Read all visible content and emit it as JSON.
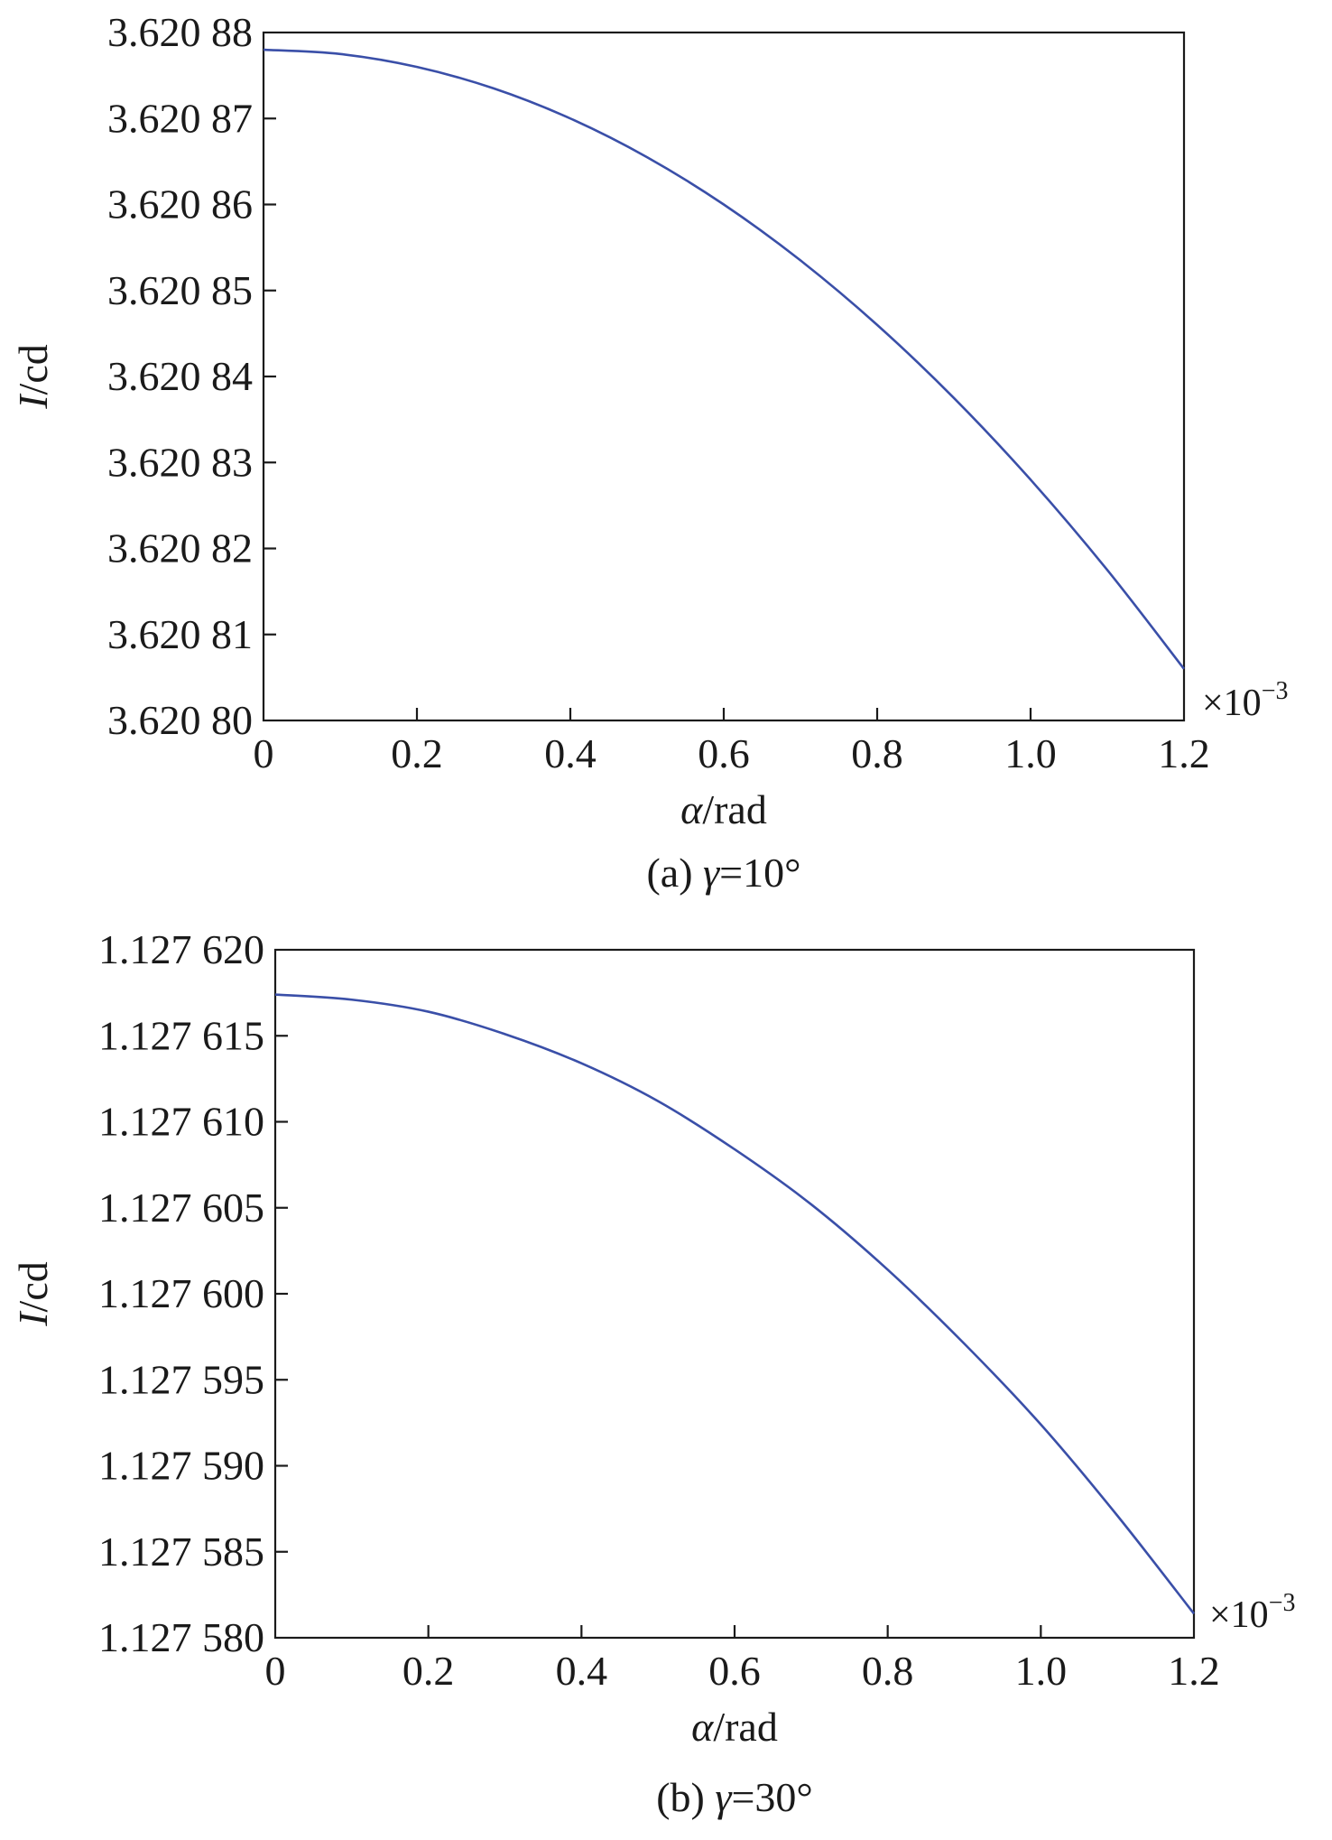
{
  "chart_data": [
    {
      "type": "line",
      "caption": "(a) γ=10°",
      "caption_prefix": "(a) ",
      "caption_var": "γ",
      "caption_rest": "=10°",
      "xlabel_var": "α",
      "xlabel_unit": "/rad",
      "ylabel_var": "I",
      "ylabel_unit": "/cd",
      "x_multiplier_base": "×10",
      "x_multiplier_exp": "−3",
      "xlim": [
        0,
        1.2
      ],
      "ylim": [
        3.6208,
        3.62088
      ],
      "x_ticks": [
        0,
        0.2,
        0.4,
        0.6,
        0.8,
        1.0,
        1.2
      ],
      "x_tick_labels": [
        "0",
        "0.2",
        "0.4",
        "0.6",
        "0.8",
        "1.0",
        "1.2"
      ],
      "y_ticks": [
        3.6208,
        3.62081,
        3.62082,
        3.62083,
        3.62084,
        3.62085,
        3.62086,
        3.62087,
        3.62088
      ],
      "y_tick_labels": [
        "3.620 80",
        "3.620 81",
        "3.620 82",
        "3.620 83",
        "3.620 84",
        "3.620 85",
        "3.620 86",
        "3.620 87",
        "3.620 88"
      ],
      "grid": false,
      "series": [
        {
          "color": "#3a4fa8",
          "x": [
            0,
            0.1,
            0.2,
            0.3,
            0.4,
            0.5,
            0.6,
            0.7,
            0.8,
            0.9,
            1.0,
            1.1,
            1.2
          ],
          "y": [
            3.620878,
            3.6208775,
            3.620876,
            3.6208735,
            3.62087,
            3.6208655,
            3.62086,
            3.6208535,
            3.620846,
            3.6208375,
            3.620828,
            3.6208175,
            3.620806
          ]
        }
      ]
    },
    {
      "type": "line",
      "caption": "(b) γ=30°",
      "caption_prefix": "(b) ",
      "caption_var": "γ",
      "caption_rest": "=30°",
      "xlabel_var": "α",
      "xlabel_unit": "/rad",
      "ylabel_var": "I",
      "ylabel_unit": "/cd",
      "x_multiplier_base": "×10",
      "x_multiplier_exp": "−3",
      "xlim": [
        0,
        1.2
      ],
      "ylim": [
        1.12758,
        1.12762
      ],
      "x_ticks": [
        0,
        0.2,
        0.4,
        0.6,
        0.8,
        1.0,
        1.2
      ],
      "x_tick_labels": [
        "0",
        "0.2",
        "0.4",
        "0.6",
        "0.8",
        "1.0",
        "1.2"
      ],
      "y_ticks": [
        1.12758,
        1.127585,
        1.12759,
        1.127595,
        1.1276,
        1.127605,
        1.12761,
        1.127615,
        1.12762
      ],
      "y_tick_labels": [
        "1.127 580",
        "1.127 585",
        "1.127 590",
        "1.127 595",
        "1.127 600",
        "1.127 605",
        "1.127 610",
        "1.127 615",
        "1.127 620"
      ],
      "grid": false,
      "series": [
        {
          "color": "#3a4fa8",
          "x": [
            0,
            0.1,
            0.2,
            0.3,
            0.4,
            0.5,
            0.6,
            0.7,
            0.8,
            0.9,
            1.0,
            1.1,
            1.2
          ],
          "y": [
            1.1276174,
            1.1276171,
            1.1276164,
            1.1276151,
            1.1276134,
            1.1276112,
            1.1276084,
            1.1276052,
            1.1276014,
            1.1275971,
            1.1275924,
            1.1275871,
            1.1275814
          ]
        }
      ]
    }
  ]
}
